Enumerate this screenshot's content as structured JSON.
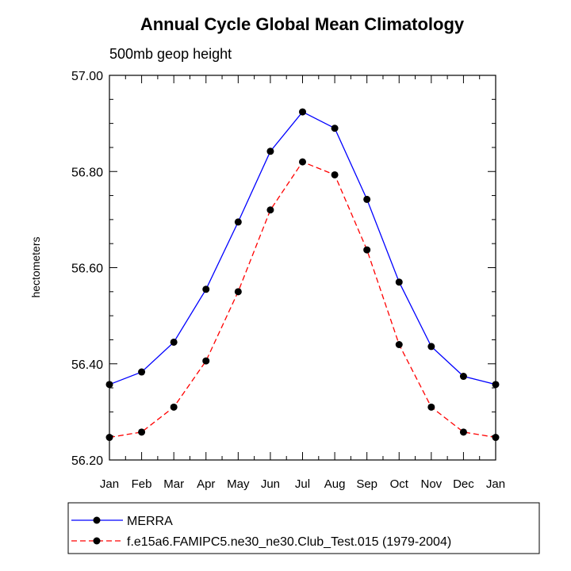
{
  "chart_data": {
    "type": "line",
    "title": "Annual Cycle Global Mean Climatology",
    "subtitle": "500mb geop height",
    "xlabel": "",
    "ylabel": "hectometers",
    "categories": [
      "Jan",
      "Feb",
      "Mar",
      "Apr",
      "May",
      "Jun",
      "Jul",
      "Aug",
      "Sep",
      "Oct",
      "Nov",
      "Dec",
      "Jan"
    ],
    "ylim": [
      56.2,
      57.0
    ],
    "yticks": [
      "56.20",
      "56.40",
      "56.60",
      "56.80",
      "57.00"
    ],
    "grid": false,
    "legend_position": "bottom",
    "series": [
      {
        "name": "MERRA",
        "color": "#0000ff",
        "style": "solid",
        "marker": "filled-circle",
        "values": [
          56.357,
          56.383,
          56.445,
          56.555,
          56.695,
          56.842,
          56.924,
          56.89,
          56.742,
          56.57,
          56.436,
          56.374,
          56.357
        ]
      },
      {
        "name": "f.e15a6.FAMIPC5.ne30_ne30.Club_Test.015 (1979-2004)",
        "color": "#ff0000",
        "style": "dashed",
        "marker": "filled-circle",
        "values": [
          56.247,
          56.258,
          56.31,
          56.406,
          56.55,
          56.72,
          56.82,
          56.793,
          56.637,
          56.44,
          56.31,
          56.258,
          56.247
        ]
      }
    ]
  }
}
